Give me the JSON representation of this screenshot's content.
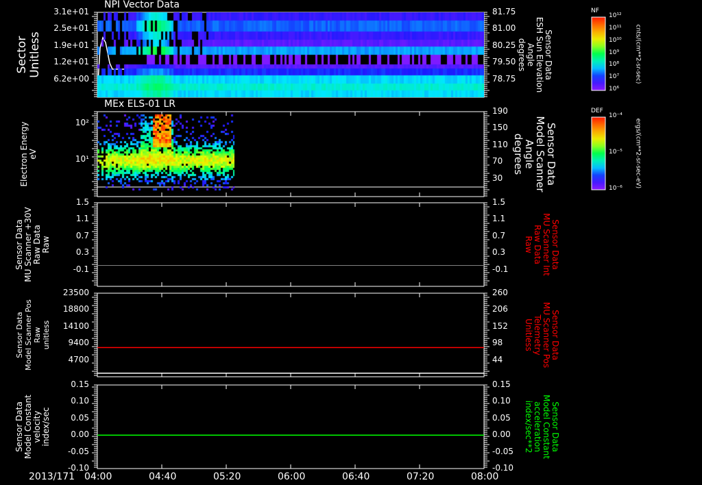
{
  "date_label": "2013/171",
  "chart_data": [
    {
      "type": "heatmap",
      "title": "NPI Vector Data",
      "ylabel": "Sector\nUnitless",
      "y2label": "Sensor Data\nESH Sun Elevation\nAngle\ndegrees",
      "yticks": [
        "3.1e+01",
        "2.5e+01",
        "1.9e+01",
        "1.2e+01",
        "6.2e+00"
      ],
      "ylim": [
        31,
        6.2
      ],
      "y2ticks": [
        "81.75",
        "81.00",
        "80.25",
        "79.50",
        "78.75"
      ],
      "colorbar": {
        "label": "NF",
        "units": "cnts/(cm**2-sr-sec)",
        "ticks": [
          "10^12",
          "10^11",
          "10^10",
          "10^9",
          "10^8",
          "10^7",
          "10^6"
        ]
      },
      "line_series": {
        "name": "ESH Sun Elevation",
        "color": "#ffffff"
      }
    },
    {
      "type": "heatmap",
      "title": "MEx ELS-01 LR",
      "ylabel": "Electron Energy\neV",
      "y2label": "Sensor Data\nModel Scanner\nAngle\ndegrees",
      "yticks": [
        "10^2",
        "10^1"
      ],
      "y2ticks": [
        "190",
        "150",
        "110",
        "70",
        "30"
      ],
      "y2lim": [
        190,
        10
      ],
      "colorbar": {
        "label": "DEF",
        "units": "ergs/(cm**2-sr-sec-eV)",
        "ticks": [
          "10^-4",
          "10^-5",
          "10^-6"
        ]
      },
      "line_series": {
        "name": "Model Scanner Angle",
        "value": 12,
        "color": "#ffffff"
      }
    },
    {
      "type": "line",
      "ylabel": "Sensor Data\nMU Scanner +30V\nRaw Data\nRaw",
      "y2label": "Sensor Data\nMU Scanner Int\nRaw Data\nRaw",
      "y2color": "#ff0000",
      "yticks": [
        "1.5",
        "1.1",
        "0.7",
        "0.3",
        "-0.1"
      ],
      "y2ticks": [
        "1.5",
        "1.1",
        "0.7",
        "0.3",
        "-0.1"
      ],
      "ylim": [
        1.5,
        -0.5
      ],
      "series": [
        {
          "name": "MU Scanner Int",
          "value": 0.0,
          "color": "#808080"
        }
      ]
    },
    {
      "type": "line",
      "ylabel": "Sensor Data\nModel Scanner Pos\nRaw\nunitless",
      "y2label": "Sensor Data\nMU Scanner Pos\nTelemetry\nUnitless",
      "y2color": "#ff0000",
      "yticks": [
        "23500",
        "18800",
        "14100",
        "9400",
        "4700"
      ],
      "y2ticks": [
        "260",
        "206",
        "152",
        "98",
        "44"
      ],
      "ylim": [
        23500,
        0
      ],
      "series": [
        {
          "name": "MU Scanner Pos",
          "value": 8200,
          "color": "#ff0000"
        },
        {
          "name": "Model Scanner Pos",
          "value": 1000,
          "color": "#ffffff"
        }
      ]
    },
    {
      "type": "line",
      "ylabel": "Sensor Data\nModel Constant\nvelocity\nindex/sec",
      "y2label": "Sensor Data\nModel Constant\nacceleration\nindex/sec**2",
      "y2color": "#00ff00",
      "yticks": [
        "0.15",
        "0.10",
        "0.05",
        "0.00",
        "-0.05",
        "-0.10"
      ],
      "y2ticks": [
        "0.15",
        "0.10",
        "0.05",
        "0.00",
        "-0.05",
        "-0.10"
      ],
      "ylim": [
        0.15,
        -0.1
      ],
      "series": [
        {
          "name": "Model Constant acceleration",
          "value": 0.0,
          "color": "#00ff00"
        }
      ]
    }
  ],
  "xticks": [
    "04:00",
    "04:40",
    "05:20",
    "06:00",
    "06:40",
    "07:20",
    "08:00"
  ]
}
